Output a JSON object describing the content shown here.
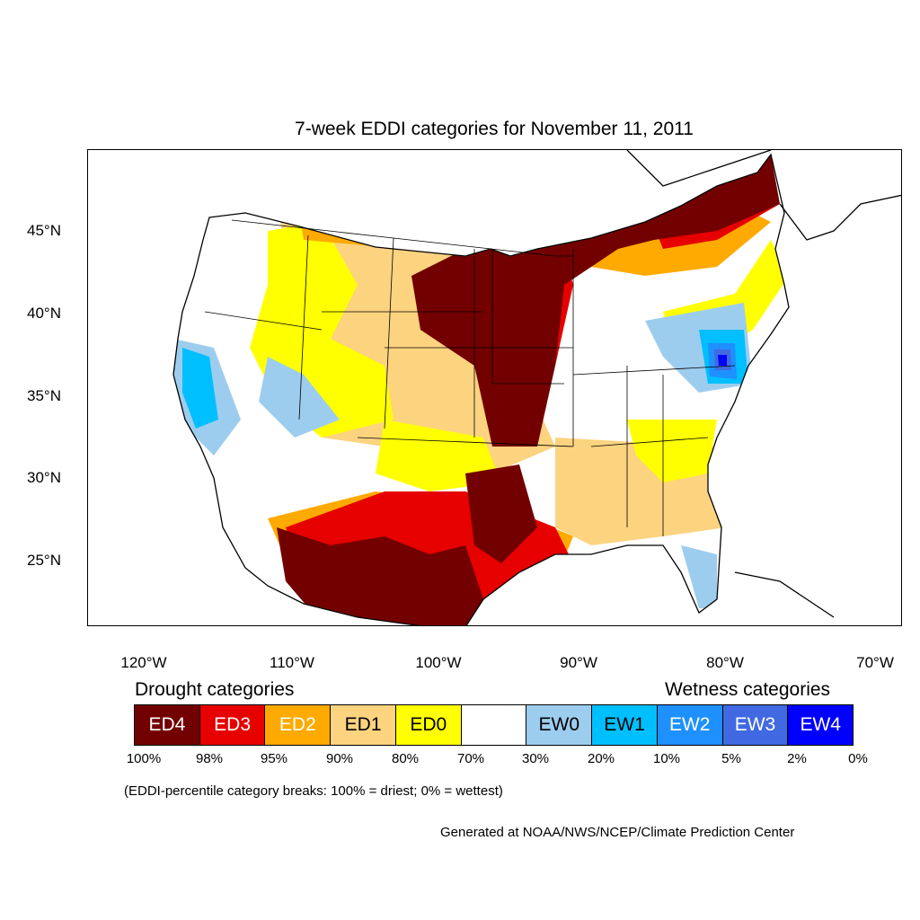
{
  "title": "7-week EDDI categories for November 11, 2011",
  "lat_labels": [
    "45°N",
    "40°N",
    "35°N",
    "30°N",
    "25°N"
  ],
  "lon_labels": [
    "120°W",
    "110°W",
    "100°W",
    "90°W",
    "80°W",
    "70°W"
  ],
  "legend": {
    "drought_heading": "Drought categories",
    "wetness_heading": "Wetness categories",
    "categories": [
      {
        "label": "ED4",
        "color": "#730000",
        "text_color": "#ffffff"
      },
      {
        "label": "ED3",
        "color": "#e60000",
        "text_color": "#ffffff"
      },
      {
        "label": "ED2",
        "color": "#ffaa00",
        "text_color": "#ffffff"
      },
      {
        "label": "ED1",
        "color": "#fcd37f",
        "text_color": "#000000"
      },
      {
        "label": "ED0",
        "color": "#ffff00",
        "text_color": "#000000"
      },
      {
        "label": "",
        "color": "#ffffff",
        "text_color": "#000000"
      },
      {
        "label": "EW0",
        "color": "#9dcdee",
        "text_color": "#000000"
      },
      {
        "label": "EW1",
        "color": "#00bfff",
        "text_color": "#000000"
      },
      {
        "label": "EW2",
        "color": "#1e90ff",
        "text_color": "#ffffff"
      },
      {
        "label": "EW3",
        "color": "#4169e1",
        "text_color": "#ffffff"
      },
      {
        "label": "EW4",
        "color": "#0000ff",
        "text_color": "#ffffff"
      }
    ],
    "percentiles": [
      "100%",
      "98%",
      "95%",
      "90%",
      "80%",
      "70%",
      "30%",
      "20%",
      "10%",
      "5%",
      "2%",
      "0%"
    ]
  },
  "note": "(EDDI-percentile category breaks: 100% = driest; 0% = wettest)",
  "credit": "Generated at NOAA/NWS/NCEP/Climate Prediction Center"
}
